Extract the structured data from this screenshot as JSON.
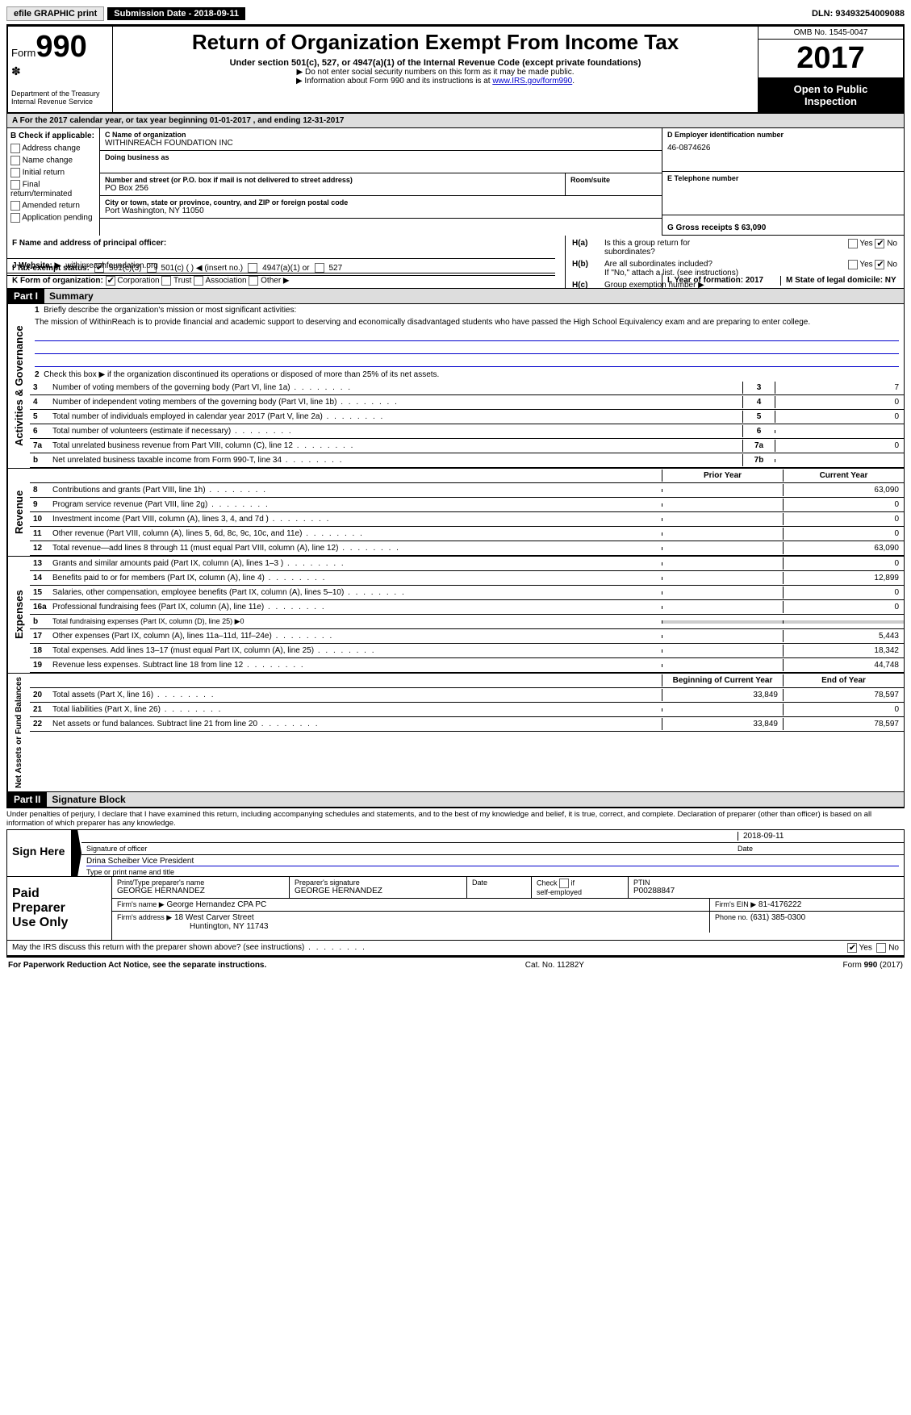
{
  "topbar": {
    "efile_btn": "efile GRAPHIC print",
    "submission": "Submission Date - 2018-09-11",
    "dln": "DLN: 93493254009088"
  },
  "header": {
    "form_prefix": "Form",
    "form_number": "990",
    "dept1": "Department of the Treasury",
    "dept2": "Internal Revenue Service",
    "title": "Return of Organization Exempt From Income Tax",
    "subtitle": "Under section 501(c), 527, or 4947(a)(1) of the Internal Revenue Code (except private foundations)",
    "note1": "▶ Do not enter social security numbers on this form as it may be made public.",
    "note2_pre": "▶ Information about Form 990 and its instructions is at ",
    "note2_link": "www.IRS.gov/form990",
    "omb": "OMB No. 1545-0047",
    "year": "2017",
    "open1": "Open to Public",
    "open2": "Inspection"
  },
  "section_a": "A  For the 2017 calendar year, or tax year beginning 01-01-2017       , and ending 12-31-2017",
  "box_b": {
    "title": "B Check if applicable:",
    "items": [
      "Address change",
      "Name change",
      "Initial return",
      "Final return/terminated",
      "Amended return",
      "Application pending"
    ]
  },
  "box_c": {
    "label": "C Name of organization",
    "name": "WITHINREACH FOUNDATION INC",
    "dba_label": "Doing business as",
    "addr_label": "Number and street (or P.O. box if mail is not delivered to street address)",
    "room_label": "Room/suite",
    "addr": "PO Box 256",
    "city_label": "City or town, state or province, country, and ZIP or foreign postal code",
    "city": "Port Washington, NY  11050"
  },
  "box_d": {
    "label": "D Employer identification number",
    "value": "46-0874626"
  },
  "box_e": {
    "label": "E Telephone number",
    "value": ""
  },
  "box_g": {
    "label": "G Gross receipts $ 63,090"
  },
  "box_f": {
    "label": "F Name and address of principal officer:"
  },
  "box_h": {
    "ha": "Is this a group return for",
    "ha2": "subordinates?",
    "hb": "Are all subordinates included?",
    "hb_note": "If \"No,\" attach a list. (see instructions)",
    "hc": "Group exemption number ▶"
  },
  "tax_exempt": {
    "label": "I   Tax-exempt status:",
    "opt1": "501(c)(3)",
    "opt2": "501(c) (  ) ◀ (insert no.)",
    "opt3": "4947(a)(1) or",
    "opt4": "527"
  },
  "website": {
    "label": "J   Website: ▶",
    "value": "withinreachfoundation.org"
  },
  "form_org": {
    "label": "K Form of organization:",
    "opts": [
      "Corporation",
      "Trust",
      "Association",
      "Other ▶"
    ]
  },
  "box_l": "L Year of formation: 2017",
  "box_m": "M State of legal domicile: NY",
  "parts": {
    "p1_label": "Part I",
    "p1_title": "Summary",
    "p2_label": "Part II",
    "p2_title": "Signature Block"
  },
  "summary": {
    "gov_label": "Activities & Governance",
    "rev_label": "Revenue",
    "exp_label": "Expenses",
    "net_label": "Net Assets or Fund Balances",
    "line1_label": "Briefly describe the organization's mission or most significant activities:",
    "mission": "The mission of WithinReach is to provide financial and academic support to deserving and economically disadvantaged students who have passed the High School Equivalency exam and are preparing to enter college.",
    "line2": "Check this box ▶        if the organization discontinued its operations or disposed of more than 25% of its net assets.",
    "lines_gov": [
      {
        "n": "3",
        "d": "Number of voting members of the governing body (Part VI, line 1a)",
        "box": "3",
        "v": "7"
      },
      {
        "n": "4",
        "d": "Number of independent voting members of the governing body (Part VI, line 1b)",
        "box": "4",
        "v": "0"
      },
      {
        "n": "5",
        "d": "Total number of individuals employed in calendar year 2017 (Part V, line 2a)",
        "box": "5",
        "v": "0"
      },
      {
        "n": "6",
        "d": "Total number of volunteers (estimate if necessary)",
        "box": "6",
        "v": ""
      },
      {
        "n": "7a",
        "d": "Total unrelated business revenue from Part VIII, column (C), line 12",
        "box": "7a",
        "v": "0"
      },
      {
        "n": "b",
        "d": "Net unrelated business taxable income from Form 990-T, line 34",
        "box": "7b",
        "v": ""
      }
    ],
    "col_prior": "Prior Year",
    "col_current": "Current Year",
    "lines_rev": [
      {
        "n": "8",
        "d": "Contributions and grants (Part VIII, line 1h)",
        "p": "",
        "c": "63,090"
      },
      {
        "n": "9",
        "d": "Program service revenue (Part VIII, line 2g)",
        "p": "",
        "c": "0"
      },
      {
        "n": "10",
        "d": "Investment income (Part VIII, column (A), lines 3, 4, and 7d )",
        "p": "",
        "c": "0"
      },
      {
        "n": "11",
        "d": "Other revenue (Part VIII, column (A), lines 5, 6d, 8c, 9c, 10c, and 11e)",
        "p": "",
        "c": "0"
      },
      {
        "n": "12",
        "d": "Total revenue—add lines 8 through 11 (must equal Part VIII, column (A), line 12)",
        "p": "",
        "c": "63,090"
      }
    ],
    "lines_exp": [
      {
        "n": "13",
        "d": "Grants and similar amounts paid (Part IX, column (A), lines 1–3 )",
        "p": "",
        "c": "0"
      },
      {
        "n": "14",
        "d": "Benefits paid to or for members (Part IX, column (A), line 4)",
        "p": "",
        "c": "12,899"
      },
      {
        "n": "15",
        "d": "Salaries, other compensation, employee benefits (Part IX, column (A), lines 5–10)",
        "p": "",
        "c": "0"
      },
      {
        "n": "16a",
        "d": "Professional fundraising fees (Part IX, column (A), line 11e)",
        "p": "",
        "c": "0"
      },
      {
        "n": "b",
        "d": "Total fundraising expenses (Part IX, column (D), line 25) ▶0",
        "shade": true
      },
      {
        "n": "17",
        "d": "Other expenses (Part IX, column (A), lines 11a–11d, 11f–24e)",
        "p": "",
        "c": "5,443"
      },
      {
        "n": "18",
        "d": "Total expenses. Add lines 13–17 (must equal Part IX, column (A), line 25)",
        "p": "",
        "c": "18,342"
      },
      {
        "n": "19",
        "d": "Revenue less expenses. Subtract line 18 from line 12",
        "p": "",
        "c": "44,748"
      }
    ],
    "col_begin": "Beginning of Current Year",
    "col_end": "End of Year",
    "lines_net": [
      {
        "n": "20",
        "d": "Total assets (Part X, line 16)",
        "p": "33,849",
        "c": "78,597"
      },
      {
        "n": "21",
        "d": "Total liabilities (Part X, line 26)",
        "p": "",
        "c": "0"
      },
      {
        "n": "22",
        "d": "Net assets or fund balances. Subtract line 21 from line 20",
        "p": "33,849",
        "c": "78,597"
      }
    ]
  },
  "penalties": "Under penalties of perjury, I declare that I have examined this return, including accompanying schedules and statements, and to the best of my knowledge and belief, it is true, correct, and complete. Declaration of preparer (other than officer) is based on all information of which preparer has any knowledge.",
  "sign": {
    "label": "Sign Here",
    "sig_officer": "Signature of officer",
    "date": "Date",
    "date_val": "2018-09-11",
    "name": "Drina Scheiber  Vice President",
    "name_sub": "Type or print name and title"
  },
  "preparer": {
    "label1": "Paid",
    "label2": "Preparer",
    "label3": "Use Only",
    "h1": "Print/Type preparer's name",
    "h2": "Preparer's signature",
    "h3": "Date",
    "h4_pre": "Check          if",
    "h4_sub": "self-employed",
    "h5": "PTIN",
    "name": "GEORGE HERNANDEZ",
    "sig": "GEORGE HERNANDEZ",
    "ptin": "P00288847",
    "firm_label": "Firm's name      ▶",
    "firm": "George Hernandez CPA PC",
    "ein_label": "Firm's EIN ▶",
    "ein": "81-4176222",
    "addr_label": "Firm's address  ▶",
    "addr": "18 West Carver Street",
    "addr2": "Huntington, NY  11743",
    "phone_label": "Phone no.",
    "phone": "(631) 385-0300"
  },
  "discuss": "May the IRS discuss this return with the preparer shown above? (see instructions)",
  "footer": {
    "left": "For Paperwork Reduction Act Notice, see the separate instructions.",
    "mid": "Cat. No. 11282Y",
    "right": "Form 990 (2017)"
  },
  "yn": {
    "yes": "Yes",
    "no": "No"
  }
}
